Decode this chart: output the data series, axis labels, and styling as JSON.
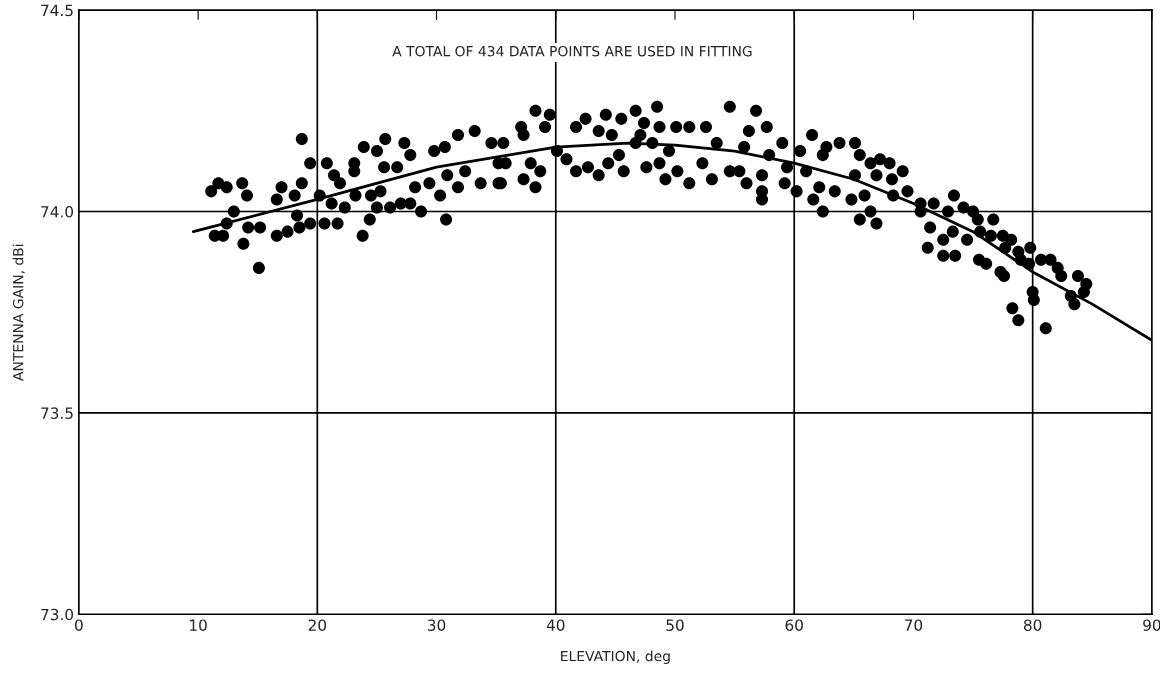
{
  "chart_data": {
    "type": "scatter",
    "xlabel": "ELEVATION, deg",
    "ylabel": "ANTENNA GAIN, dBi",
    "annotations": [
      "A TOTAL OF 434 DATA POINTS ARE USED IN FITTING"
    ],
    "xlim": [
      0,
      90
    ],
    "xticks": [
      0,
      10,
      20,
      30,
      40,
      50,
      60,
      70,
      80,
      90
    ],
    "ylim": [
      73.0,
      74.5
    ],
    "yticks": [
      {
        "value": 73.0,
        "label": "73.0"
      },
      {
        "value": 73.5,
        "label": "73.5"
      },
      {
        "value": 74.0,
        "label": "74.0"
      },
      {
        "value": 74.5,
        "label": "74.5"
      }
    ],
    "grid": false,
    "legend": false,
    "marker": "circle",
    "ref_lines": [
      {
        "axis": "x",
        "value": 20,
        "color": "#000000"
      },
      {
        "axis": "x",
        "value": 40,
        "color": "#000000"
      },
      {
        "axis": "x",
        "value": 60,
        "color": "#000000"
      },
      {
        "axis": "x",
        "value": 80,
        "color": "#000000"
      },
      {
        "axis": "y",
        "value": 73.5,
        "color": "#000000"
      },
      {
        "axis": "y",
        "value": 74.0,
        "color": "#000000"
      }
    ],
    "series": [
      {
        "color": "#000000",
        "x": [
          11.1,
          11.7,
          12.4,
          13.7,
          14.1,
          13.0,
          12.4,
          11.4,
          12.1,
          13.8,
          15.1,
          14.2,
          15.2,
          16.6,
          17.5,
          18.5,
          18.7,
          19.4,
          18.7,
          17.0,
          16.6,
          18.1,
          18.3,
          19.4,
          20.2,
          20.8,
          21.4,
          21.9,
          20.6,
          21.7,
          21.2,
          22.3,
          23.8,
          23.2,
          23.1,
          23.9,
          25.0,
          25.7,
          27.3,
          24.5,
          25.3,
          24.4,
          25.0,
          26.1,
          27.0,
          27.8,
          28.2,
          28.7,
          29.4,
          30.3,
          30.8,
          27.8,
          29.8,
          30.7,
          31.8,
          33.2,
          34.6,
          31.8,
          30.9,
          32.4,
          33.7,
          35.2,
          35.2,
          25.6,
          26.7,
          23.1,
          35.6,
          35.8,
          35.4,
          37.1,
          37.3,
          38.3,
          39.5,
          39.1,
          38.3,
          37.3,
          37.9,
          38.7,
          40.1,
          40.9,
          41.7,
          41.7,
          42.5,
          44.2,
          43.6,
          44.7,
          45.5,
          46.7,
          48.5,
          47.4,
          48.7,
          47.1,
          46.7,
          48.1,
          42.7,
          43.6,
          44.4,
          45.3,
          45.7,
          47.6,
          48.7,
          49.5,
          49.2,
          50.1,
          51.2,
          52.6,
          54.6,
          56.8,
          57.7,
          56.2,
          50.2,
          51.2,
          52.3,
          53.1,
          53.5,
          54.6,
          55.4,
          55.8,
          56.0,
          57.3,
          57.3,
          57.3,
          57.9,
          59.0,
          59.4,
          60.5,
          61.5,
          59.2,
          60.2,
          61.6,
          62.1,
          62.4,
          62.4,
          61.0,
          62.7,
          63.8,
          65.1,
          65.5,
          66.4,
          67.2,
          68.0,
          69.1,
          65.1,
          66.9,
          68.2,
          63.4,
          64.8,
          65.9,
          65.5,
          66.9,
          66.4,
          68.3,
          69.5,
          70.6,
          71.7,
          70.6,
          73.4,
          72.9,
          74.2,
          75.0,
          71.4,
          72.5,
          73.3,
          74.5,
          75.4,
          76.7,
          75.6,
          76.5,
          77.5,
          78.2,
          71.2,
          72.5,
          73.5,
          75.5,
          76.1,
          77.3,
          77.6,
          77.7,
          78.8,
          79.8,
          79.0,
          79.7,
          80.7,
          81.5,
          82.1,
          82.4,
          83.8,
          84.5,
          84.3,
          83.2,
          83.5,
          80.0,
          80.1,
          78.3,
          78.8,
          81.1
        ],
        "values": [
          74.05,
          74.07,
          74.06,
          74.07,
          74.04,
          74.0,
          73.97,
          73.94,
          73.94,
          73.92,
          73.86,
          73.96,
          73.96,
          73.94,
          73.95,
          73.96,
          74.18,
          74.12,
          74.07,
          74.06,
          74.03,
          74.04,
          73.99,
          73.97,
          74.04,
          74.12,
          74.09,
          74.07,
          73.97,
          73.97,
          74.02,
          74.01,
          73.94,
          74.04,
          74.12,
          74.16,
          74.15,
          74.18,
          74.17,
          74.04,
          74.05,
          73.98,
          74.01,
          74.01,
          74.02,
          74.02,
          74.06,
          74.0,
          74.07,
          74.04,
          73.98,
          74.14,
          74.15,
          74.16,
          74.19,
          74.2,
          74.17,
          74.06,
          74.09,
          74.1,
          74.07,
          74.07,
          74.12,
          74.11,
          74.11,
          74.1,
          74.17,
          74.12,
          74.07,
          74.21,
          74.19,
          74.25,
          74.24,
          74.21,
          74.06,
          74.08,
          74.12,
          74.1,
          74.15,
          74.13,
          74.1,
          74.21,
          74.23,
          74.24,
          74.2,
          74.19,
          74.23,
          74.25,
          74.26,
          74.22,
          74.21,
          74.19,
          74.17,
          74.17,
          74.11,
          74.09,
          74.12,
          74.14,
          74.1,
          74.11,
          74.12,
          74.15,
          74.08,
          74.21,
          74.21,
          74.21,
          74.26,
          74.25,
          74.21,
          74.2,
          74.1,
          74.07,
          74.12,
          74.08,
          74.17,
          74.1,
          74.1,
          74.16,
          74.07,
          74.09,
          74.03,
          74.05,
          74.14,
          74.17,
          74.11,
          74.15,
          74.19,
          74.07,
          74.05,
          74.03,
          74.06,
          74.0,
          74.14,
          74.1,
          74.16,
          74.17,
          74.17,
          74.14,
          74.12,
          74.13,
          74.12,
          74.1,
          74.09,
          74.09,
          74.08,
          74.05,
          74.03,
          74.04,
          73.98,
          73.97,
          74.0,
          74.04,
          74.05,
          74.02,
          74.02,
          74.0,
          74.04,
          74.0,
          74.01,
          74.0,
          73.96,
          73.93,
          73.95,
          73.93,
          73.98,
          73.98,
          73.95,
          73.94,
          73.94,
          73.93,
          73.91,
          73.89,
          73.89,
          73.88,
          73.87,
          73.85,
          73.84,
          73.91,
          73.9,
          73.91,
          73.88,
          73.87,
          73.88,
          73.88,
          73.86,
          73.84,
          73.84,
          73.82,
          73.8,
          73.79,
          73.77,
          73.8,
          73.78,
          73.76,
          73.73,
          73.71
        ]
      },
      {
        "type": "line",
        "color": "#000000",
        "marker": "none",
        "line_style": "solid",
        "x": [
          9.6,
          20,
          30,
          36,
          40,
          46,
          50,
          55,
          60,
          65,
          70,
          75,
          80,
          85,
          90
        ],
        "values": [
          73.95,
          74.03,
          74.11,
          74.14,
          74.16,
          74.17,
          74.165,
          74.15,
          74.12,
          74.08,
          74.02,
          73.95,
          73.85,
          73.77,
          73.68
        ]
      }
    ]
  }
}
